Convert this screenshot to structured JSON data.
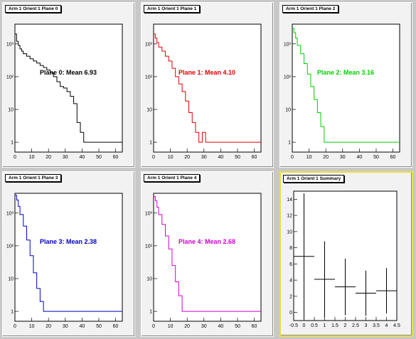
{
  "pads": [
    {
      "title": "Arm 1 Orient 1 Plane 0",
      "color": "#000000",
      "mean_label": "Plane 0: Mean 6.93"
    },
    {
      "title": "Arm 1 Orient 1 Plane 1",
      "color": "#e00000",
      "mean_label": "Plane 1: Mean 4.10"
    },
    {
      "title": "Arm 1 Orient 1 Plane 2",
      "color": "#00d000",
      "mean_label": "Plane 2: Mean 3.16"
    },
    {
      "title": "Arm 1 Orient 1 Plane 3",
      "color": "#0000c0",
      "mean_label": "Plane 3: Mean 2.38"
    },
    {
      "title": "Arm 1 Orient 1 Plane 4",
      "color": "#d000d0",
      "mean_label": "Plane 4: Mean 2.68"
    },
    {
      "title": "Arm 1 Orient 1 Summary"
    }
  ],
  "chart_data": [
    {
      "type": "line",
      "title": "Arm 1 Orient 1 Plane 0",
      "log_y": true,
      "xlim": [
        0,
        64
      ],
      "x_ticks": [
        "0",
        "10",
        "20",
        "30",
        "40",
        "50",
        "60"
      ],
      "y_ticks": [
        "1",
        "10",
        "10²",
        "10³"
      ],
      "x": [
        0,
        1,
        2,
        3,
        4,
        5,
        7,
        9,
        11,
        13,
        15,
        17,
        19,
        21,
        23,
        25,
        27,
        29,
        31,
        33,
        35,
        37,
        39,
        41,
        43,
        63,
        64
      ],
      "y": [
        2000,
        1200,
        900,
        700,
        600,
        500,
        420,
        350,
        300,
        260,
        220,
        190,
        160,
        130,
        100,
        70,
        50,
        45,
        35,
        25,
        15,
        4,
        2,
        1,
        1,
        1,
        1
      ]
    },
    {
      "type": "line",
      "title": "Arm 1 Orient 1 Plane 1",
      "log_y": true,
      "xlim": [
        0,
        64
      ],
      "x_ticks": [
        "0",
        "10",
        "20",
        "30",
        "40",
        "50",
        "60"
      ],
      "y_ticks": [
        "1",
        "10",
        "10²",
        "10³"
      ],
      "x": [
        0,
        1,
        2,
        3,
        5,
        7,
        9,
        11,
        13,
        15,
        17,
        19,
        21,
        23,
        25,
        27,
        29,
        31,
        55,
        57
      ],
      "y": [
        2000,
        1500,
        1100,
        800,
        600,
        420,
        300,
        180,
        100,
        60,
        35,
        18,
        8,
        4,
        2,
        1,
        2,
        1,
        1,
        1
      ]
    },
    {
      "type": "line",
      "title": "Arm 1 Orient 1 Plane 2",
      "log_y": true,
      "xlim": [
        0,
        64
      ],
      "x_ticks": [
        "0",
        "10",
        "20",
        "30",
        "40",
        "50",
        "60"
      ],
      "y_ticks": [
        "1",
        "10",
        "10²",
        "10³"
      ],
      "x": [
        0,
        1,
        2,
        3,
        5,
        7,
        9,
        11,
        13,
        15,
        17,
        19,
        21,
        37,
        39,
        45,
        47,
        53,
        55
      ],
      "y": [
        3000,
        2200,
        1500,
        900,
        500,
        250,
        120,
        50,
        20,
        8,
        3,
        1,
        1,
        1,
        1,
        1,
        1,
        1,
        1
      ]
    },
    {
      "type": "line",
      "title": "Arm 1 Orient 1 Plane 3",
      "log_y": true,
      "xlim": [
        0,
        64
      ],
      "x_ticks": [
        "0",
        "10",
        "20",
        "30",
        "40",
        "50",
        "60"
      ],
      "y_ticks": [
        "1",
        "10",
        "10²",
        "10³"
      ],
      "x": [
        0,
        1,
        2,
        3,
        5,
        7,
        9,
        11,
        13,
        15,
        17,
        19,
        21,
        27,
        29,
        59,
        61
      ],
      "y": [
        3500,
        2500,
        1600,
        900,
        400,
        150,
        50,
        15,
        5,
        2,
        1,
        1,
        1,
        1,
        1,
        1,
        1
      ]
    },
    {
      "type": "line",
      "title": "Arm 1 Orient 1 Plane 4",
      "log_y": true,
      "xlim": [
        0,
        64
      ],
      "x_ticks": [
        "0",
        "10",
        "20",
        "30",
        "40",
        "50",
        "60"
      ],
      "y_ticks": [
        "1",
        "10",
        "10²",
        "10³"
      ],
      "x": [
        0,
        1,
        2,
        3,
        5,
        7,
        9,
        11,
        13,
        15,
        17,
        19,
        21,
        27,
        29,
        33,
        35,
        63
      ],
      "y": [
        3200,
        2400,
        1500,
        900,
        450,
        200,
        80,
        25,
        8,
        3,
        1,
        1,
        1,
        1,
        1,
        1,
        1,
        1
      ]
    },
    {
      "type": "scatter",
      "title": "Arm 1 Orient 1 Summary",
      "xlim": [
        -0.5,
        4.5
      ],
      "ylim": [
        -1,
        15
      ],
      "x_ticks": [
        "-0.5",
        "0",
        "0.5",
        "1",
        "1.5",
        "2",
        "2.5",
        "3",
        "3.5",
        "4",
        "4.5"
      ],
      "y_ticks": [
        "0",
        "2",
        "4",
        "6",
        "8",
        "10",
        "12",
        "14"
      ],
      "points": [
        {
          "x": 0,
          "y": 6.93,
          "err": 7.8
        },
        {
          "x": 1,
          "y": 4.1,
          "err": 4.7
        },
        {
          "x": 2,
          "y": 3.16,
          "err": 3.5
        },
        {
          "x": 3,
          "y": 2.38,
          "err": 2.8
        },
        {
          "x": 4,
          "y": 2.68,
          "err": 2.8
        }
      ]
    }
  ]
}
